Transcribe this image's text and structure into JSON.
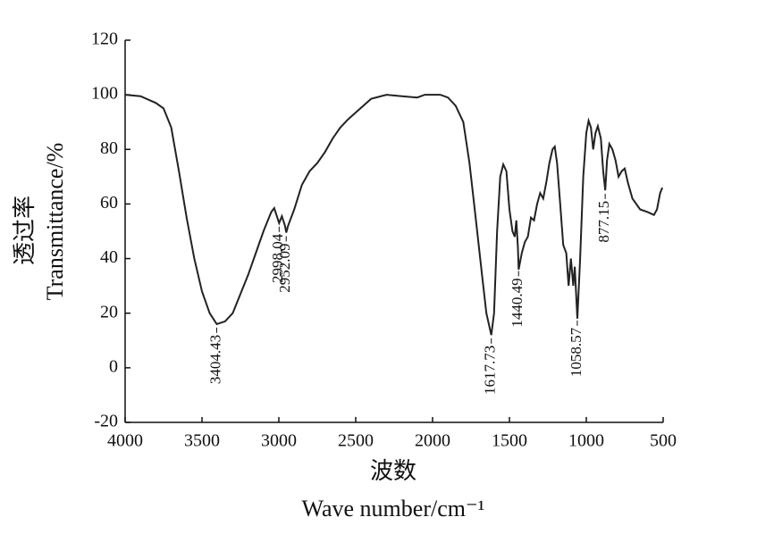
{
  "chart_data": {
    "type": "line",
    "xlabel": [
      "波数",
      "Wave number/cm⁻¹"
    ],
    "ylabel": [
      "透过率",
      "Transmittance/%"
    ],
    "xlim": [
      4000,
      500
    ],
    "xticks": [
      4000,
      3500,
      3000,
      2500,
      2000,
      1500,
      1000,
      500
    ],
    "ylim": [
      -20,
      120
    ],
    "yticks": [
      -20,
      0,
      20,
      40,
      60,
      80,
      100,
      120
    ],
    "x": [
      4000,
      3900,
      3800,
      3750,
      3700,
      3650,
      3600,
      3550,
      3500,
      3450,
      3404,
      3350,
      3300,
      3250,
      3200,
      3150,
      3100,
      3050,
      3030,
      3010,
      2998,
      2980,
      2960,
      2952,
      2940,
      2900,
      2850,
      2800,
      2750,
      2700,
      2650,
      2600,
      2550,
      2500,
      2450,
      2400,
      2300,
      2200,
      2100,
      2050,
      1950,
      1900,
      1850,
      1800,
      1760,
      1720,
      1680,
      1650,
      1618,
      1600,
      1580,
      1560,
      1540,
      1520,
      1500,
      1480,
      1465,
      1455,
      1445,
      1440,
      1420,
      1400,
      1380,
      1360,
      1340,
      1320,
      1300,
      1280,
      1260,
      1240,
      1220,
      1205,
      1190,
      1170,
      1150,
      1130,
      1115,
      1100,
      1085,
      1075,
      1058,
      1040,
      1020,
      1000,
      985,
      970,
      955,
      940,
      925,
      905,
      890,
      877,
      865,
      850,
      830,
      810,
      790,
      770,
      750,
      730,
      700,
      650,
      600,
      560,
      540,
      520,
      505
    ],
    "series": [
      {
        "color": "#222222",
        "values": [
          100,
          99.5,
          97,
          95,
          88,
          72,
          55,
          40,
          28,
          20,
          16,
          17,
          20,
          27,
          34,
          42,
          50,
          57,
          58.5,
          55,
          53,
          55.5,
          52,
          49.5,
          52,
          58,
          67,
          72,
          75,
          79,
          84,
          88,
          91,
          93.5,
          96,
          98.5,
          100,
          99.5,
          99,
          100,
          100,
          99,
          96,
          90,
          75,
          55,
          35,
          20,
          12,
          20,
          50,
          70,
          74.5,
          72,
          58,
          50,
          48,
          54,
          44,
          36,
          42,
          46,
          48,
          55,
          54,
          60,
          64,
          62,
          68,
          75,
          80,
          81,
          75,
          60,
          45,
          42,
          30,
          40,
          30,
          37,
          18,
          40,
          70,
          86,
          90.5,
          88,
          80,
          86,
          88.5,
          84,
          72,
          65,
          76,
          82,
          80,
          76,
          70,
          72,
          73,
          68,
          62,
          58,
          57,
          56,
          58,
          64,
          66
        ]
      }
    ],
    "peaks": [
      3404.43,
      2998.04,
      2952.09,
      1617.73,
      1440.49,
      1058.57,
      877.15
    ]
  }
}
